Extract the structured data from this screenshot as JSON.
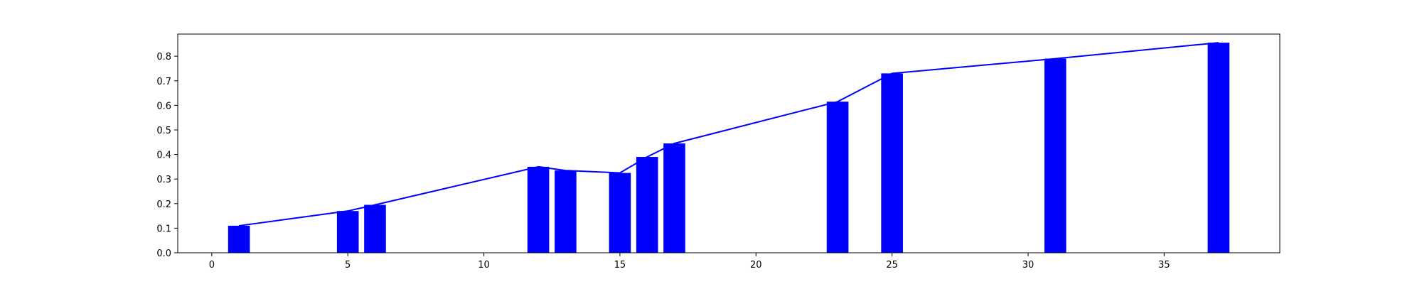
{
  "chart_data": {
    "type": "bar",
    "title": "",
    "xlabel": "",
    "ylabel": "",
    "xlim": [
      -1.25,
      39.25
    ],
    "ylim": [
      0,
      0.89
    ],
    "grid": false,
    "legend": null,
    "bar_width": 0.8,
    "x_ticks": [
      0,
      5,
      10,
      15,
      20,
      25,
      30,
      35
    ],
    "y_ticks": [
      0.0,
      0.1,
      0.2,
      0.3,
      0.4,
      0.5,
      0.6,
      0.7,
      0.8
    ],
    "bar_color": "#0000ff",
    "line_color": "#0000ff",
    "x": [
      1,
      5,
      6,
      12,
      13,
      15,
      16,
      17,
      23,
      25,
      31,
      37
    ],
    "values": [
      0.11,
      0.17,
      0.195,
      0.35,
      0.335,
      0.325,
      0.39,
      0.445,
      0.615,
      0.73,
      0.79,
      0.855
    ],
    "line": {
      "x": [
        1,
        5,
        6,
        12,
        13,
        15,
        16,
        17,
        23,
        25,
        31,
        37
      ],
      "y": [
        0.11,
        0.17,
        0.195,
        0.35,
        0.335,
        0.325,
        0.39,
        0.445,
        0.615,
        0.73,
        0.79,
        0.855
      ]
    }
  }
}
